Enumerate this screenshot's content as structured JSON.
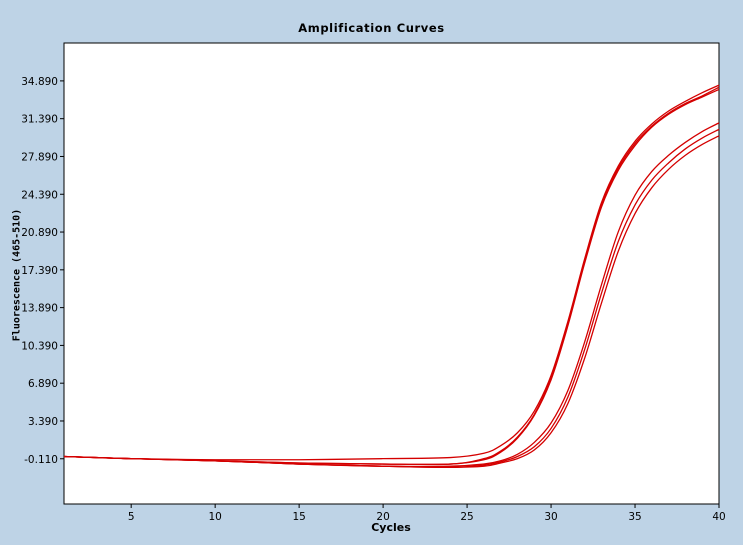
{
  "chart_data": {
    "type": "line",
    "title": "Amplification Curves",
    "xlabel": "Cycles",
    "ylabel": "Fluorescence (465-510)",
    "xlim": [
      1,
      40
    ],
    "ylim": [
      -4.3,
      38.4
    ],
    "xticks": [
      5,
      10,
      15,
      20,
      25,
      30,
      35,
      40
    ],
    "xtick_labels": [
      "5",
      "10",
      "15",
      "20",
      "25",
      "30",
      "35",
      "40"
    ],
    "yticks": [
      -0.11,
      3.39,
      6.89,
      10.39,
      13.89,
      17.39,
      20.89,
      24.39,
      27.89,
      31.39,
      34.89
    ],
    "ytick_labels": [
      "-0.110",
      "3.390",
      "6.890",
      "10.390",
      "13.890",
      "17.390",
      "20.890",
      "24.390",
      "27.890",
      "31.390",
      "34.890"
    ],
    "grid": false,
    "line_color": "#d40000",
    "series": [
      {
        "x": [
          1,
          5,
          10,
          15,
          20,
          24,
          26,
          27,
          28,
          29,
          30,
          31,
          32,
          33,
          34,
          35,
          36,
          37,
          38,
          39,
          40
        ],
        "y": [
          0.1,
          -0.1,
          -0.2,
          -0.2,
          -0.1,
          0.0,
          0.4,
          1.1,
          2.3,
          4.3,
          7.6,
          12.6,
          18.4,
          23.6,
          27.0,
          29.3,
          30.9,
          32.1,
          33.0,
          33.8,
          34.5
        ]
      },
      {
        "x": [
          1,
          5,
          10,
          15,
          20,
          24,
          26,
          27,
          28,
          29,
          30,
          31,
          32,
          33,
          34,
          35,
          36,
          37,
          38,
          39,
          40
        ],
        "y": [
          0.1,
          -0.1,
          -0.3,
          -0.5,
          -0.6,
          -0.6,
          -0.2,
          0.5,
          1.8,
          3.9,
          7.2,
          12.2,
          18.0,
          23.2,
          26.6,
          28.9,
          30.6,
          31.8,
          32.7,
          33.4,
          34.1
        ]
      },
      {
        "x": [
          1,
          5,
          10,
          15,
          20,
          24,
          26,
          27,
          28,
          29,
          30,
          31,
          32,
          33,
          34,
          35,
          36,
          37,
          38,
          39,
          40
        ],
        "y": [
          0.1,
          -0.1,
          -0.3,
          -0.5,
          -0.6,
          -0.6,
          -0.1,
          0.6,
          1.9,
          4.0,
          7.4,
          12.4,
          18.2,
          23.4,
          26.8,
          29.1,
          30.7,
          31.9,
          32.8,
          33.5,
          34.3
        ]
      },
      {
        "x": [
          1,
          5,
          10,
          15,
          20,
          24,
          26,
          27,
          28,
          29,
          30,
          31,
          32,
          33,
          34,
          35,
          36,
          37,
          38,
          39,
          40
        ],
        "y": [
          0.1,
          -0.1,
          -0.3,
          -0.6,
          -0.8,
          -0.8,
          -0.6,
          -0.3,
          0.3,
          1.4,
          3.2,
          6.2,
          10.7,
          16.0,
          20.9,
          24.3,
          26.5,
          28.0,
          29.2,
          30.2,
          31.0
        ]
      },
      {
        "x": [
          1,
          5,
          10,
          15,
          20,
          24,
          26,
          27,
          28,
          29,
          30,
          31,
          32,
          33,
          34,
          35,
          36,
          37,
          38,
          39,
          40
        ],
        "y": [
          0.1,
          -0.1,
          -0.3,
          -0.6,
          -0.8,
          -0.9,
          -0.7,
          -0.4,
          0.1,
          1.0,
          2.7,
          5.6,
          10.0,
          15.2,
          20.0,
          23.4,
          25.7,
          27.3,
          28.6,
          29.6,
          30.4
        ]
      },
      {
        "x": [
          1,
          5,
          10,
          15,
          20,
          24,
          26,
          27,
          28,
          29,
          30,
          31,
          32,
          33,
          34,
          35,
          36,
          37,
          38,
          39,
          40
        ],
        "y": [
          0.1,
          -0.1,
          -0.3,
          -0.6,
          -0.8,
          -0.9,
          -0.8,
          -0.5,
          -0.1,
          0.7,
          2.3,
          5.0,
          9.2,
          14.3,
          19.1,
          22.6,
          25.0,
          26.7,
          28.0,
          29.0,
          29.8
        ]
      }
    ]
  }
}
